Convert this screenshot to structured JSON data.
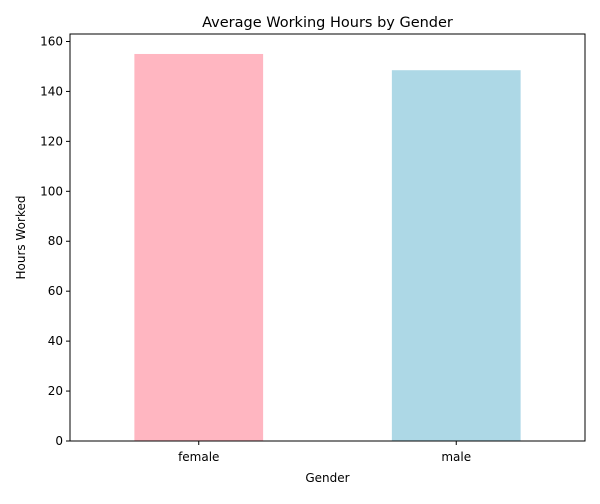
{
  "chart_data": {
    "type": "bar",
    "title": "Average Working Hours by Gender",
    "xlabel": "Gender",
    "ylabel": "Hours Worked",
    "categories": [
      "female",
      "male"
    ],
    "values": [
      155,
      148.5
    ],
    "bar_colors": [
      "#ffb6c1",
      "#add8e6"
    ],
    "ylim": [
      0,
      163
    ],
    "yticks": [
      0,
      20,
      40,
      60,
      80,
      100,
      120,
      140,
      160
    ],
    "grid": false,
    "legend": "none"
  }
}
